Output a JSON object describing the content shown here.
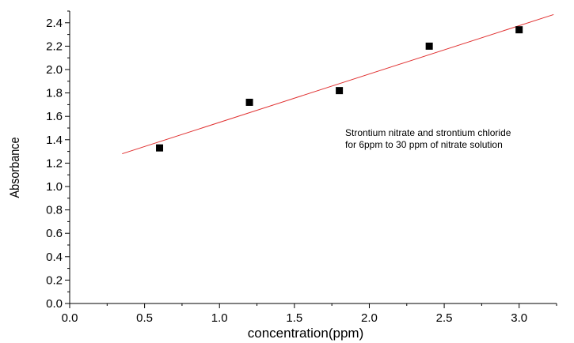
{
  "chart_data": {
    "type": "scatter",
    "xlabel": "concentration(ppm)",
    "ylabel": "Absorbance",
    "xlim": [
      0.0,
      3.25
    ],
    "ylim": [
      0.0,
      2.5
    ],
    "x_ticks": [
      0.0,
      0.5,
      1.0,
      1.5,
      2.0,
      2.5,
      3.0
    ],
    "x_tick_labels": [
      "0.0",
      "0.5",
      "1.0",
      "1.5",
      "2.0",
      "2.5",
      "3.0"
    ],
    "y_ticks": [
      0.0,
      0.2,
      0.4,
      0.6,
      0.8,
      1.0,
      1.2,
      1.4,
      1.6,
      1.8,
      2.0,
      2.2,
      2.4
    ],
    "y_tick_labels": [
      "0.0",
      "0.2",
      "0.4",
      "0.6",
      "0.8",
      "1.0",
      "1.2",
      "1.4",
      "1.6",
      "1.8",
      "2.0",
      "2.2",
      "2.4"
    ],
    "grid": false,
    "series": [
      {
        "x": [
          0.6,
          1.2,
          1.8,
          2.4,
          3.0
        ],
        "y": [
          1.33,
          1.72,
          1.82,
          2.2,
          2.34
        ],
        "marker": "square",
        "color": "#000000"
      }
    ],
    "fit_line": {
      "x": [
        0.35,
        3.23
      ],
      "y": [
        1.28,
        2.47
      ],
      "color": "#e03030"
    },
    "annotation": {
      "lines": [
        "Strontium nitrate and strontium chloride",
        "for 6ppm to 30 ppm of nitrate solution"
      ]
    }
  }
}
